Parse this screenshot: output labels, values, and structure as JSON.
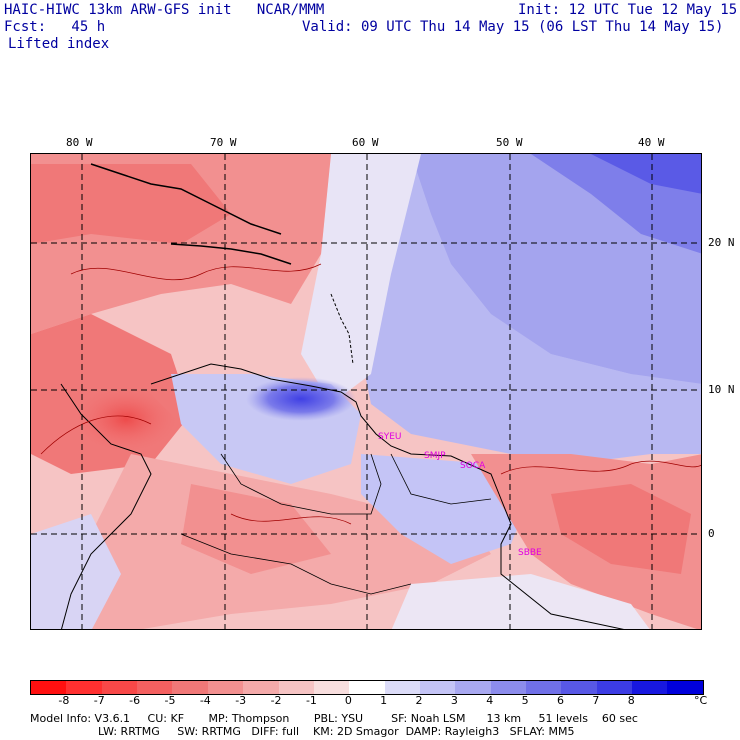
{
  "header": {
    "model_line": "HAIC-HIWC 13km ARW-GFS init   NCAR/MMM",
    "init_line": "Init: 12 UTC Tue 12 May 15",
    "fcst_line": "Fcst:   45 h",
    "valid_line": "Valid: 09 UTC Thu 14 May 15 (06 LST Thu 14 May 15)",
    "field_name": "Lifted index"
  },
  "map": {
    "lon_labels": [
      "80 W",
      "70 W",
      "60 W",
      "50 W",
      "40 W"
    ],
    "lat_labels": [
      "20 N",
      "10 N",
      "0"
    ],
    "stations": [
      "SYEU",
      "SMJP",
      "SOCA",
      "SBBE"
    ]
  },
  "colorbar": {
    "unit": "°C",
    "ticks": [
      "-8",
      "-7",
      "-6",
      "-5",
      "-4",
      "-3",
      "-2",
      "-1",
      "0",
      "1",
      "2",
      "3",
      "4",
      "5",
      "6",
      "7",
      "8"
    ],
    "colors": [
      "#ff1010",
      "#ff3030",
      "#f84848",
      "#f46060",
      "#f07878",
      "#f29090",
      "#f4aaaa",
      "#f6c4c4",
      "#f8dede",
      "#ffffff",
      "#dcdcf8",
      "#c4c4f6",
      "#a8a8f0",
      "#8c8cec",
      "#7070e8",
      "#5858e6",
      "#3c3ce4",
      "#1818e0",
      "#0000dc"
    ]
  },
  "footer": {
    "line1": "Model Info: V3.6.1     CU: KF       MP: Thompson       PBL: YSU        SF: Noah LSM      13 km     51 levels    60 sec",
    "line2": "LW: RRTMG     SW: RRTMG   DIFF: full    KM: 2D Smagor  DAMP: Rayleigh3   SFLAY: MM5"
  }
}
